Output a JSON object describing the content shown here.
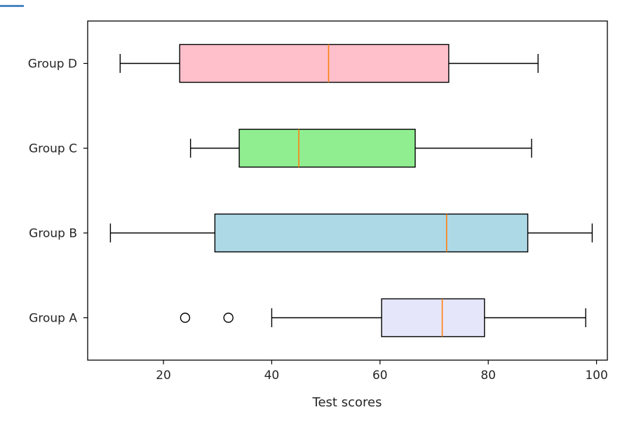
{
  "chart_data": {
    "type": "boxplot",
    "orientation": "horizontal",
    "title": "",
    "xlabel": "Test scores",
    "ylabel": "",
    "xlim": [
      6,
      102
    ],
    "x_ticks": [
      20,
      40,
      60,
      80,
      100
    ],
    "categories": [
      "Group A",
      "Group B",
      "Group C",
      "Group D"
    ],
    "grid": false,
    "median_color": "#ff7f0e",
    "series": [
      {
        "category": "Group A",
        "whisker_low": 40,
        "q1": 60.3,
        "median": 71.5,
        "q3": 79.3,
        "whisker_high": 98,
        "outliers": [
          24,
          32
        ],
        "color": "#e6e6fa"
      },
      {
        "category": "Group B",
        "whisker_low": 10.2,
        "q1": 29.5,
        "median": 72.3,
        "q3": 87.3,
        "whisker_high": 99.2,
        "outliers": [],
        "color": "#add8e6"
      },
      {
        "category": "Group C",
        "whisker_low": 25,
        "q1": 34,
        "median": 45,
        "q3": 66.5,
        "whisker_high": 88,
        "outliers": [],
        "color": "#90ee90"
      },
      {
        "category": "Group D",
        "whisker_low": 12,
        "q1": 23,
        "median": 50.5,
        "q3": 72.7,
        "whisker_high": 89.2,
        "outliers": [],
        "color": "#ffc0cb"
      }
    ]
  }
}
